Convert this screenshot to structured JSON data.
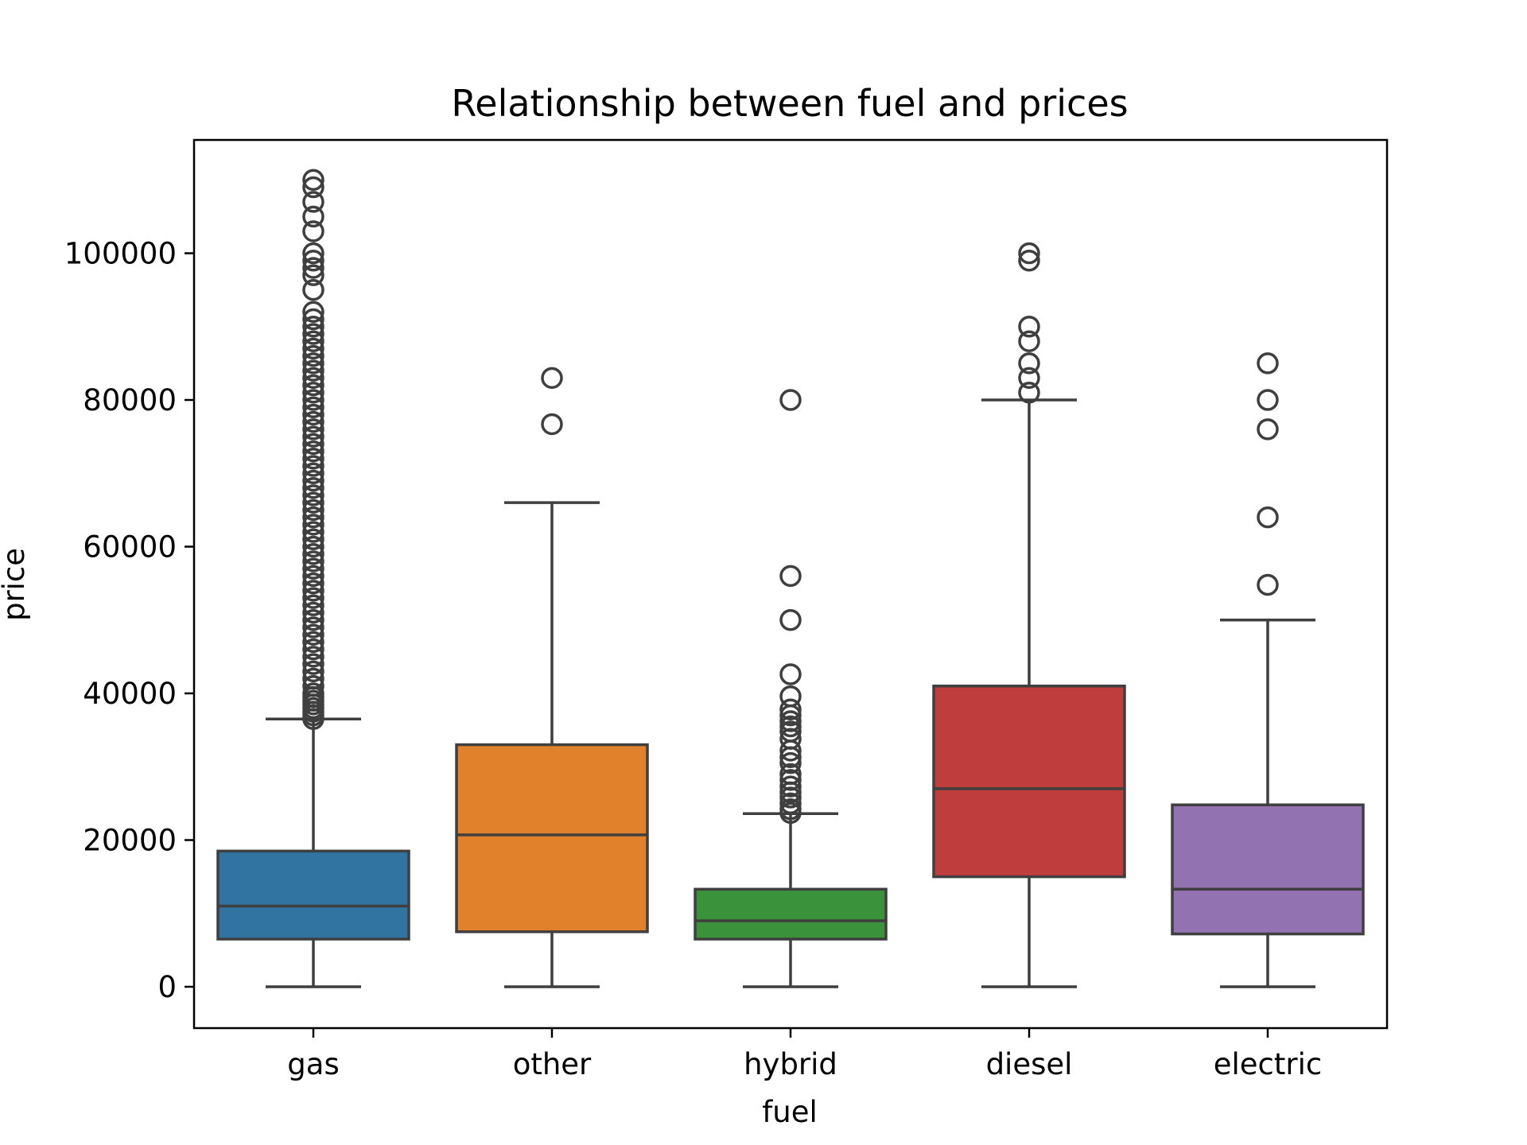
{
  "chart_data": {
    "type": "box",
    "title": "Relationship between fuel and prices",
    "xlabel": "fuel",
    "ylabel": "price",
    "ylim": [
      -5500,
      115000
    ],
    "yticks": [
      0,
      20000,
      40000,
      60000,
      80000,
      100000
    ],
    "grid": false,
    "legend": "none",
    "categories": [
      "gas",
      "other",
      "hybrid",
      "diesel",
      "electric"
    ],
    "boxes": [
      {
        "category": "gas",
        "color": "#3274a1",
        "whisker_low": 0,
        "q1": 6500,
        "median": 11000,
        "q3": 18500,
        "whisker_high": 36500,
        "outliers": [
          36500,
          37000,
          37500,
          38000,
          38500,
          39000,
          39500,
          40000,
          41000,
          42000,
          43000,
          44000,
          45000,
          46000,
          47000,
          48000,
          49000,
          50000,
          51000,
          52000,
          53000,
          54000,
          55000,
          56000,
          57000,
          58000,
          59000,
          60000,
          61000,
          62000,
          63000,
          64000,
          65000,
          66000,
          67000,
          68000,
          69000,
          70000,
          71000,
          72000,
          73000,
          74000,
          75000,
          76000,
          77000,
          78000,
          79000,
          80000,
          81000,
          82000,
          83000,
          84000,
          85000,
          86000,
          87000,
          88000,
          89000,
          90000,
          91000,
          92000,
          95000,
          97000,
          98000,
          99000,
          100000,
          103000,
          105000,
          107000,
          109000,
          110000
        ]
      },
      {
        "category": "other",
        "color": "#e1812c",
        "whisker_low": 0,
        "q1": 7500,
        "median": 20700,
        "q3": 33000,
        "whisker_high": 66000,
        "outliers": [
          76700,
          83000
        ]
      },
      {
        "category": "hybrid",
        "color": "#3a923a",
        "whisker_low": 0,
        "q1": 6500,
        "median": 9000,
        "q3": 13300,
        "whisker_high": 23600,
        "outliers": [
          23700,
          24200,
          25000,
          25800,
          26500,
          27300,
          28200,
          29000,
          30500,
          31300,
          32200,
          33800,
          34800,
          35500,
          36200,
          37000,
          37800,
          39600,
          42600,
          50000,
          56000,
          80000
        ]
      },
      {
        "category": "diesel",
        "color": "#c03d3e",
        "whisker_low": 0,
        "q1": 15000,
        "median": 27000,
        "q3": 41000,
        "whisker_high": 80000,
        "outliers": [
          81000,
          83000,
          85000,
          88000,
          90000,
          99000,
          100000
        ]
      },
      {
        "category": "electric",
        "color": "#9372b2",
        "whisker_low": 0,
        "q1": 7200,
        "median": 13300,
        "q3": 24800,
        "whisker_high": 50000,
        "outliers": [
          54800,
          64000,
          76000,
          80000,
          85000
        ]
      }
    ]
  }
}
